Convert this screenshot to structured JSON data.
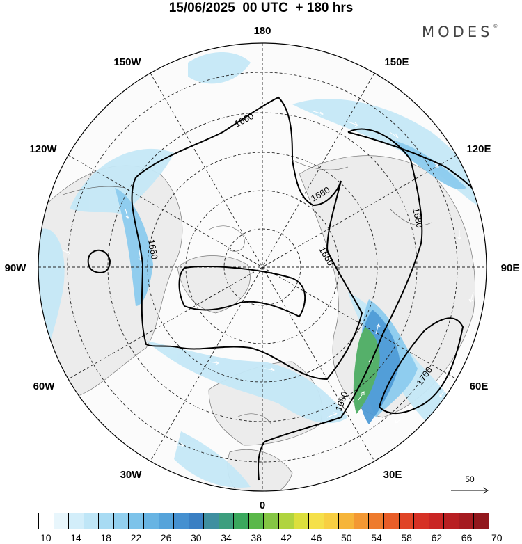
{
  "header": {
    "title": "15/06/2025  00 UTC  + 180 hrs",
    "brand": "MODES",
    "brand_mark": "©"
  },
  "map": {
    "projection": "north-polar-stereographic",
    "longitude_labels": {
      "top": "180",
      "top_right": "150E",
      "upper_right": "120E",
      "right": "90E",
      "lower_right": "60E",
      "bottom_right": "30E",
      "bottom": "0",
      "bottom_left": "30W",
      "lower_left": "60W",
      "left": "90W",
      "upper_left": "120W",
      "top_left": "150W"
    },
    "contour_labels": [
      "1660",
      "1660",
      "1660",
      "1660",
      "1680",
      "1680",
      "1700"
    ],
    "reference_vector": "50",
    "colors": {
      "land_fill": "#f2f2f2",
      "contour": "#000000",
      "wind_arrow": "#ffffff"
    }
  },
  "colorbar": {
    "tick_labels": [
      "10",
      "14",
      "18",
      "22",
      "26",
      "30",
      "34",
      "38",
      "42",
      "46",
      "50",
      "54",
      "58",
      "62",
      "66",
      "70"
    ],
    "colors": [
      "#ffffff",
      "#e8f6fc",
      "#d3eefa",
      "#bfe6f7",
      "#a8dbf3",
      "#92d0ef",
      "#7dc3ea",
      "#68b4e3",
      "#55a3da",
      "#4590d0",
      "#3a7fc3",
      "#3f8fa0",
      "#3c9e7e",
      "#3aa85d",
      "#5ab84a",
      "#85c644",
      "#b0d43f",
      "#dcdf3c",
      "#f5e04a",
      "#f8cf42",
      "#f6b53a",
      "#f39833",
      "#ee7b2d",
      "#e85d28",
      "#e04426",
      "#d63125",
      "#c92524",
      "#b81f22",
      "#a51b20",
      "#92171d"
    ]
  }
}
